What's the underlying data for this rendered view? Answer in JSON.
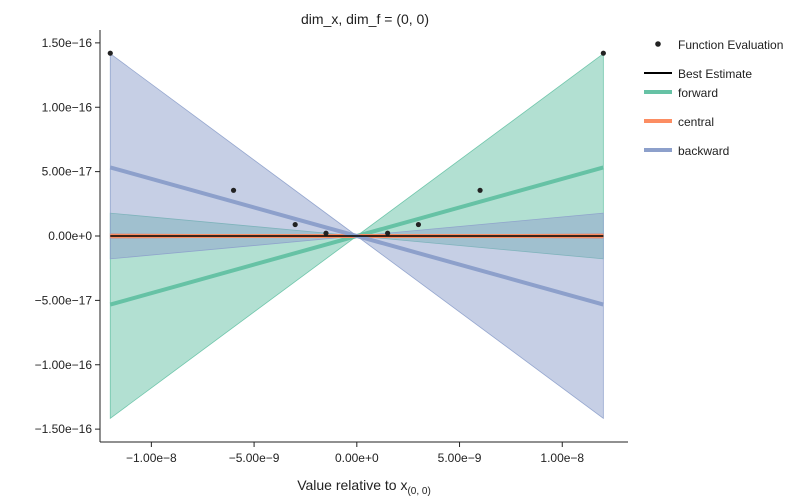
{
  "chart_data": {
    "type": "line",
    "title": "dim_x, dim_f = (0, 0)",
    "xlabel": "Value relative to x",
    "xlabel_subscript": "(0, 0)",
    "ylabel": "",
    "xlim": [
      -1.25e-08,
      1.32e-08
    ],
    "ylim": [
      -1.6e-16,
      1.6e-16
    ],
    "x_ticks": [
      -1e-08,
      -5e-09,
      0,
      5e-09,
      1e-08
    ],
    "x_tick_labels": [
      "−1.00e−8",
      "−5.00e−9",
      "0.00e+0",
      "5.00e−9",
      "1.00e−8"
    ],
    "y_ticks": [
      1.5e-16,
      1e-16,
      5e-17,
      0,
      -5e-17,
      -1e-16,
      -1.5e-16
    ],
    "y_tick_labels": [
      "1.50e−16",
      "1.00e−16",
      "5.00e−17",
      "0.00e+0",
      "−5.00e−17",
      "−1.00e−16",
      "−1.50e−16"
    ],
    "grid": false,
    "legend_position": "right",
    "x_range": [
      -1.2e-08,
      1.2e-08
    ],
    "function_evaluations": {
      "name": "Function Evaluation",
      "color": "#222222",
      "points": [
        {
          "x": -1.2e-08,
          "y": 1.42e-16
        },
        {
          "x": -6e-09,
          "y": 3.55e-17
        },
        {
          "x": -3e-09,
          "y": 8.9e-18
        },
        {
          "x": -1.5e-09,
          "y": 2.2e-18
        },
        {
          "x": 1.5e-09,
          "y": 2.2e-18
        },
        {
          "x": 3e-09,
          "y": 8.9e-18
        },
        {
          "x": 6e-09,
          "y": 3.55e-17
        },
        {
          "x": 1.2e-08,
          "y": 1.42e-16
        }
      ]
    },
    "best_estimate": {
      "name": "Best Estimate",
      "color": "#000000",
      "slope": 0
    },
    "series": [
      {
        "name": "forward",
        "color": "#66c2a5",
        "slope": 4.44e-09,
        "band_slope_low": -1.48e-09,
        "band_slope_high": 1.18e-08
      },
      {
        "name": "central",
        "color": "#fc8d62",
        "slope": 0,
        "band_slope_low": -1.5e-10,
        "band_slope_high": 1.5e-10
      },
      {
        "name": "backward",
        "color": "#8da0cb",
        "slope": -4.44e-09,
        "band_slope_low": -1.18e-08,
        "band_slope_high": 1.48e-09
      }
    ]
  }
}
